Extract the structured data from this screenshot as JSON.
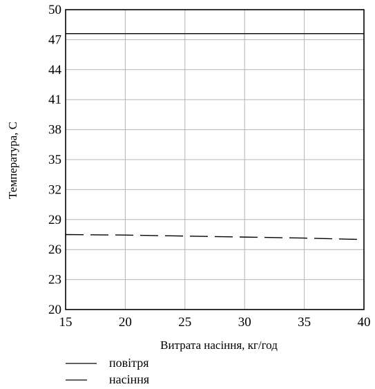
{
  "chart_data": {
    "type": "line",
    "title": "",
    "xlabel": "Витрата насіння, кг/год",
    "ylabel": "Температура, С",
    "xlim": [
      15,
      40
    ],
    "ylim": [
      20,
      50
    ],
    "xticks": [
      15,
      20,
      25,
      30,
      35,
      40
    ],
    "yticks": [
      20,
      23,
      26,
      29,
      32,
      35,
      38,
      41,
      44,
      47,
      50
    ],
    "grid": true,
    "legend_position": "bottom-left",
    "series": [
      {
        "name": "повітря",
        "style": "solid",
        "color": "#000000",
        "x": [
          15,
          20,
          25,
          30,
          35,
          40
        ],
        "y": [
          47.6,
          47.6,
          47.6,
          47.6,
          47.6,
          47.6
        ]
      },
      {
        "name": "насіння",
        "style": "dashed",
        "color": "#000000",
        "x": [
          15,
          20,
          25,
          30,
          35,
          40
        ],
        "y": [
          27.5,
          27.45,
          27.35,
          27.25,
          27.15,
          27.0
        ]
      }
    ]
  }
}
